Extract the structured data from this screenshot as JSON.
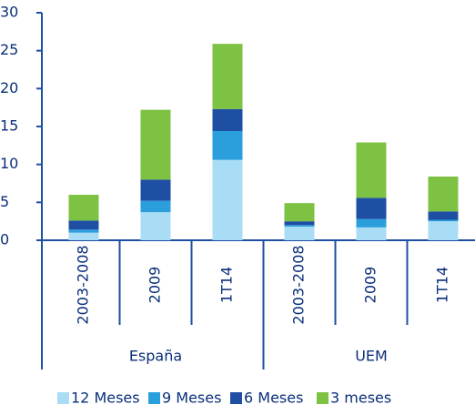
{
  "chart_data": {
    "type": "stacked_bar",
    "groups": [
      {
        "name": "España",
        "categories": [
          "2003-2008",
          "2009",
          "1T14"
        ]
      },
      {
        "name": "UEM",
        "categories": [
          "2003-2008",
          "2009",
          "1T14"
        ]
      }
    ],
    "series": [
      {
        "name": "12 Meses",
        "color": "#a9ddf6",
        "values": [
          1.0,
          3.7,
          10.6,
          1.8,
          1.7,
          2.5
        ]
      },
      {
        "name": "9 Meses",
        "color": "#2a9fdc",
        "values": [
          0.4,
          1.5,
          3.8,
          0.2,
          1.1,
          0.2
        ]
      },
      {
        "name": "6 Meses",
        "color": "#1f4fa3",
        "values": [
          1.2,
          2.8,
          2.9,
          0.5,
          2.8,
          1.1
        ]
      },
      {
        "name": "3 meses",
        "color": "#7dc243",
        "values": [
          3.4,
          9.2,
          8.6,
          2.4,
          7.3,
          4.6
        ]
      }
    ],
    "ylim": [
      0,
      30
    ],
    "yticks": [
      0,
      5,
      10,
      15,
      20,
      25,
      30
    ]
  }
}
